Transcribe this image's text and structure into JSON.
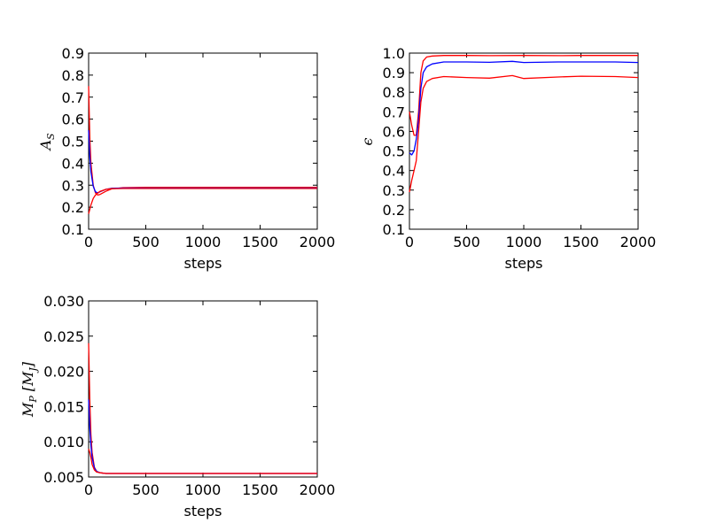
{
  "chart_data": [
    {
      "type": "line",
      "xlabel": "steps",
      "ylabel": "A",
      "ylabel_sub": "S",
      "xlim": [
        0,
        2000
      ],
      "ylim": [
        0.1,
        0.9
      ],
      "xticks": [
        "0",
        "500",
        "1000",
        "1500",
        "2000"
      ],
      "yticks": [
        "0.1",
        "0.2",
        "0.3",
        "0.4",
        "0.5",
        "0.6",
        "0.7",
        "0.8",
        "0.9"
      ],
      "series": [
        {
          "color": "#ff0000",
          "x": [
            0,
            10,
            20,
            40,
            60,
            80,
            100,
            150,
            200,
            300,
            500,
            1000,
            1500,
            2000
          ],
          "y": [
            0.75,
            0.52,
            0.4,
            0.3,
            0.265,
            0.255,
            0.258,
            0.272,
            0.283,
            0.289,
            0.29,
            0.29,
            0.29,
            0.29
          ]
        },
        {
          "color": "#0000ff",
          "x": [
            0,
            10,
            20,
            40,
            60,
            80,
            100,
            150,
            200,
            300,
            500,
            1000,
            1500,
            2000
          ],
          "y": [
            0.55,
            0.43,
            0.36,
            0.295,
            0.27,
            0.265,
            0.27,
            0.281,
            0.286,
            0.287,
            0.287,
            0.287,
            0.287,
            0.287
          ]
        },
        {
          "color": "#ff0000",
          "x": [
            0,
            10,
            20,
            40,
            60,
            80,
            100,
            150,
            200,
            300,
            500,
            1000,
            1500,
            2000
          ],
          "y": [
            0.17,
            0.19,
            0.21,
            0.24,
            0.255,
            0.265,
            0.272,
            0.281,
            0.284,
            0.285,
            0.285,
            0.285,
            0.285,
            0.285
          ]
        }
      ]
    },
    {
      "type": "line",
      "xlabel": "steps",
      "ylabel": "ϵ",
      "ylabel_sub": "",
      "xlim": [
        0,
        2000
      ],
      "ylim": [
        0.1,
        1.0
      ],
      "xticks": [
        "0",
        "500",
        "1000",
        "1500",
        "2000"
      ],
      "yticks": [
        "0.1",
        "0.2",
        "0.3",
        "0.4",
        "0.5",
        "0.6",
        "0.7",
        "0.8",
        "0.9",
        "1.0"
      ],
      "series": [
        {
          "color": "#ff0000",
          "x": [
            0,
            20,
            40,
            60,
            80,
            100,
            120,
            150,
            200,
            300,
            500,
            700,
            1000,
            1300,
            1500,
            1800,
            2000
          ],
          "y": [
            0.7,
            0.63,
            0.58,
            0.58,
            0.7,
            0.9,
            0.96,
            0.98,
            0.985,
            0.988,
            0.988,
            0.987,
            0.988,
            0.987,
            0.988,
            0.988,
            0.988
          ]
        },
        {
          "color": "#0000ff",
          "x": [
            0,
            20,
            40,
            60,
            80,
            100,
            120,
            150,
            200,
            300,
            500,
            700,
            900,
            1000,
            1300,
            1500,
            1800,
            2000
          ],
          "y": [
            0.49,
            0.48,
            0.5,
            0.56,
            0.66,
            0.82,
            0.9,
            0.93,
            0.945,
            0.955,
            0.955,
            0.953,
            0.958,
            0.952,
            0.955,
            0.955,
            0.955,
            0.952
          ]
        },
        {
          "color": "#ff0000",
          "x": [
            0,
            20,
            40,
            60,
            80,
            100,
            120,
            150,
            200,
            300,
            500,
            700,
            900,
            1000,
            1300,
            1500,
            1800,
            2000
          ],
          "y": [
            0.29,
            0.35,
            0.4,
            0.45,
            0.6,
            0.75,
            0.82,
            0.855,
            0.87,
            0.88,
            0.875,
            0.872,
            0.885,
            0.87,
            0.878,
            0.882,
            0.88,
            0.875
          ]
        }
      ]
    },
    {
      "type": "line",
      "xlabel": "steps",
      "ylabel": "M",
      "ylabel_sub": "P",
      "ylabel_unit": "[M",
      "ylabel_unit_sub": "J",
      "ylabel_unit_close": "]",
      "xlim": [
        0,
        2000
      ],
      "ylim": [
        0.005,
        0.03
      ],
      "xticks": [
        "0",
        "500",
        "1000",
        "1500",
        "2000"
      ],
      "yticks": [
        "0.005",
        "0.010",
        "0.015",
        "0.020",
        "0.025",
        "0.030"
      ],
      "series": [
        {
          "color": "#ff0000",
          "x": [
            0,
            10,
            20,
            30,
            50,
            70,
            100,
            150,
            200,
            500,
            1000,
            1500,
            2000
          ],
          "y": [
            0.024,
            0.016,
            0.011,
            0.0085,
            0.0064,
            0.0058,
            0.0056,
            0.0055,
            0.0055,
            0.0055,
            0.0055,
            0.0055,
            0.0055
          ]
        },
        {
          "color": "#0000ff",
          "x": [
            0,
            10,
            20,
            30,
            50,
            70,
            100,
            150,
            200,
            500,
            1000,
            1500,
            2000
          ],
          "y": [
            0.016,
            0.012,
            0.0095,
            0.0078,
            0.0063,
            0.0058,
            0.0056,
            0.0055,
            0.0055,
            0.0055,
            0.0055,
            0.0055,
            0.0055
          ]
        },
        {
          "color": "#ff0000",
          "x": [
            0,
            10,
            20,
            30,
            50,
            70,
            100,
            150,
            200,
            500,
            1000,
            1500,
            2000
          ],
          "y": [
            0.009,
            0.0085,
            0.0078,
            0.0068,
            0.006,
            0.0057,
            0.0056,
            0.0055,
            0.0055,
            0.0055,
            0.0055,
            0.0055,
            0.0055
          ]
        }
      ]
    }
  ]
}
